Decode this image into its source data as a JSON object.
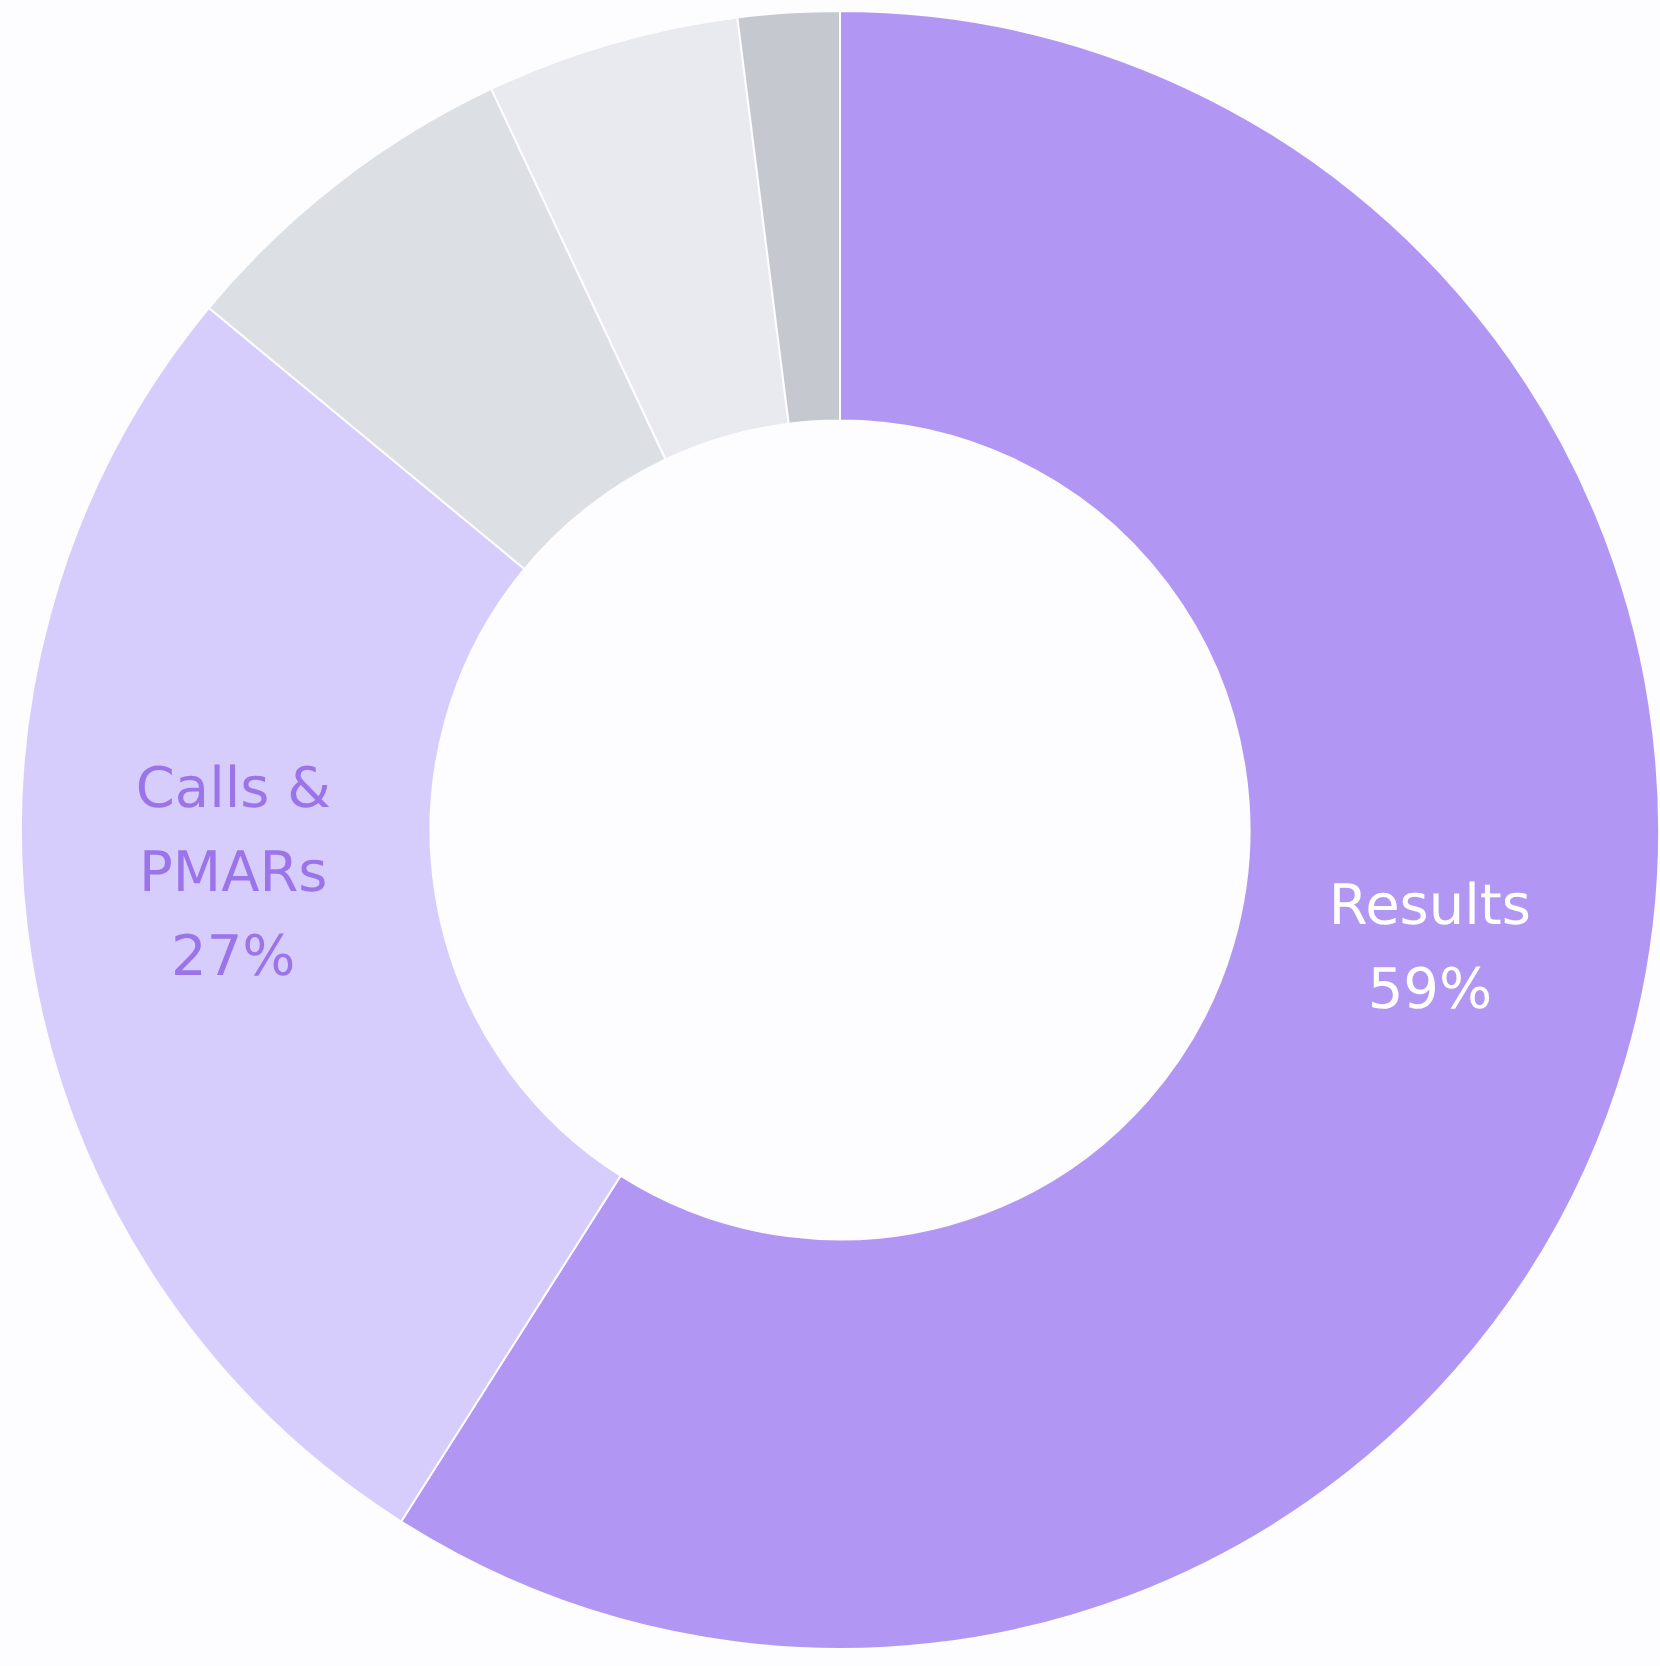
{
  "chart_data": {
    "type": "donut",
    "categories": [
      "Results",
      "Calls & PMARs",
      null,
      null,
      null
    ],
    "values": [
      59,
      27,
      7,
      5,
      2
    ],
    "colors": [
      "#b197f3",
      "#d6cdfd",
      "#dcdfe4",
      "#e8eaf0",
      "#c5c8cf"
    ],
    "value_labels": [
      "59%",
      "27%",
      null,
      null,
      null
    ],
    "legend": false
  }
}
